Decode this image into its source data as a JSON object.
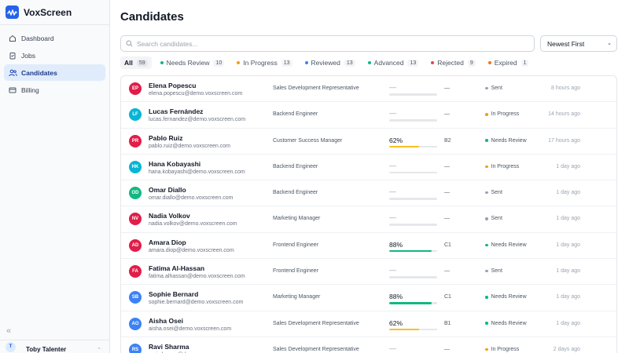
{
  "app": {
    "name": "VoxScreen"
  },
  "colors": {
    "accent": "#2563eb",
    "active_nav_bg": "#e0ecfb"
  },
  "sidebar": {
    "items": [
      {
        "label": "Dashboard",
        "icon": "home-icon",
        "active": false
      },
      {
        "label": "Jobs",
        "icon": "clipboard-icon",
        "active": false
      },
      {
        "label": "Candidates",
        "icon": "users-icon",
        "active": true
      },
      {
        "label": "Billing",
        "icon": "credit-card-icon",
        "active": false
      }
    ],
    "collapse_icon": "double-chevron-left-icon",
    "user": {
      "initial": "T",
      "name": "Toby Talenter"
    }
  },
  "main": {
    "title": "Candidates",
    "search": {
      "placeholder": "Search candidates...",
      "value": ""
    },
    "sort": {
      "selected": "Newest First"
    },
    "filters": [
      {
        "label": "All",
        "count": "59",
        "color": "",
        "active": true
      },
      {
        "label": "Needs Review",
        "count": "10",
        "color": "#10b981",
        "active": false
      },
      {
        "label": "In Progress",
        "count": "13",
        "color": "#f59e0b",
        "active": false
      },
      {
        "label": "Reviewed",
        "count": "13",
        "color": "#3b82f6",
        "active": false
      },
      {
        "label": "Advanced",
        "count": "13",
        "color": "#10b981",
        "active": false
      },
      {
        "label": "Rejected",
        "count": "9",
        "color": "#ef4444",
        "active": false
      },
      {
        "label": "Expired",
        "count": "1",
        "color": "#f97316",
        "active": false
      }
    ],
    "candidates": [
      {
        "initials": "EP",
        "avatar_color": "#e11d48",
        "name": "Elena Popescu",
        "email": "elena.popescu@demo.voxscreen.com",
        "role": "Sales Development Representative",
        "score": "—",
        "score_value": 0,
        "score_color": "",
        "level": "—",
        "status": "Sent",
        "status_color": "#9ca3af",
        "time": "8 hours ago"
      },
      {
        "initials": "LF",
        "avatar_color": "#06b6d4",
        "name": "Lucas Fernández",
        "email": "lucas.fernandez@demo.voxscreen.com",
        "role": "Backend Engineer",
        "score": "—",
        "score_value": 0,
        "score_color": "",
        "level": "—",
        "status": "In Progress",
        "status_color": "#f59e0b",
        "time": "14 hours ago"
      },
      {
        "initials": "PR",
        "avatar_color": "#e11d48",
        "name": "Pablo Ruiz",
        "email": "pablo.ruiz@demo.voxscreen.com",
        "role": "Customer Success Manager",
        "score": "62%",
        "score_value": 62,
        "score_color": "#fbbf24",
        "level": "B2",
        "status": "Needs Review",
        "status_color": "#10b981",
        "time": "17 hours ago"
      },
      {
        "initials": "HK",
        "avatar_color": "#06b6d4",
        "name": "Hana Kobayashi",
        "email": "hana.kobayashi@demo.voxscreen.com",
        "role": "Backend Engineer",
        "score": "—",
        "score_value": 0,
        "score_color": "",
        "level": "—",
        "status": "In Progress",
        "status_color": "#f59e0b",
        "time": "1 day ago"
      },
      {
        "initials": "OD",
        "avatar_color": "#10b981",
        "name": "Omar Diallo",
        "email": "omar.diallo@demo.voxscreen.com",
        "role": "Backend Engineer",
        "score": "—",
        "score_value": 0,
        "score_color": "",
        "level": "—",
        "status": "Sent",
        "status_color": "#9ca3af",
        "time": "1 day ago"
      },
      {
        "initials": "NV",
        "avatar_color": "#e11d48",
        "name": "Nadia Volkov",
        "email": "nadia.volkov@demo.voxscreen.com",
        "role": "Marketing Manager",
        "score": "—",
        "score_value": 0,
        "score_color": "",
        "level": "—",
        "status": "Sent",
        "status_color": "#9ca3af",
        "time": "1 day ago"
      },
      {
        "initials": "AD",
        "avatar_color": "#e11d48",
        "name": "Amara Diop",
        "email": "amara.diop@demo.voxscreen.com",
        "role": "Frontend Engineer",
        "score": "88%",
        "score_value": 88,
        "score_color": "#10b981",
        "level": "C1",
        "status": "Needs Review",
        "status_color": "#10b981",
        "time": "1 day ago"
      },
      {
        "initials": "FA",
        "avatar_color": "#e11d48",
        "name": "Fatima Al-Hassan",
        "email": "fatima.alhassan@demo.voxscreen.com",
        "role": "Frontend Engineer",
        "score": "—",
        "score_value": 0,
        "score_color": "",
        "level": "—",
        "status": "Sent",
        "status_color": "#9ca3af",
        "time": "1 day ago"
      },
      {
        "initials": "SB",
        "avatar_color": "#3b82f6",
        "name": "Sophie Bernard",
        "email": "sophie.bernard@demo.voxscreen.com",
        "role": "Marketing Manager",
        "score": "88%",
        "score_value": 88,
        "score_color": "#10b981",
        "level": "C1",
        "status": "Needs Review",
        "status_color": "#10b981",
        "time": "1 day ago"
      },
      {
        "initials": "AO",
        "avatar_color": "#3b82f6",
        "name": "Aisha Osei",
        "email": "aisha.osei@demo.voxscreen.com",
        "role": "Sales Development Representative",
        "score": "62%",
        "score_value": 62,
        "score_color": "#fbbf24",
        "level": "B1",
        "status": "Needs Review",
        "status_color": "#10b981",
        "time": "1 day ago"
      },
      {
        "initials": "RS",
        "avatar_color": "#3b82f6",
        "name": "Ravi Sharma",
        "email": "ravi.sharma@demo.voxscreen.com",
        "role": "Sales Development Representative",
        "score": "—",
        "score_value": 0,
        "score_color": "",
        "level": "—",
        "status": "In Progress",
        "status_color": "#f59e0b",
        "time": "2 days ago"
      }
    ]
  }
}
